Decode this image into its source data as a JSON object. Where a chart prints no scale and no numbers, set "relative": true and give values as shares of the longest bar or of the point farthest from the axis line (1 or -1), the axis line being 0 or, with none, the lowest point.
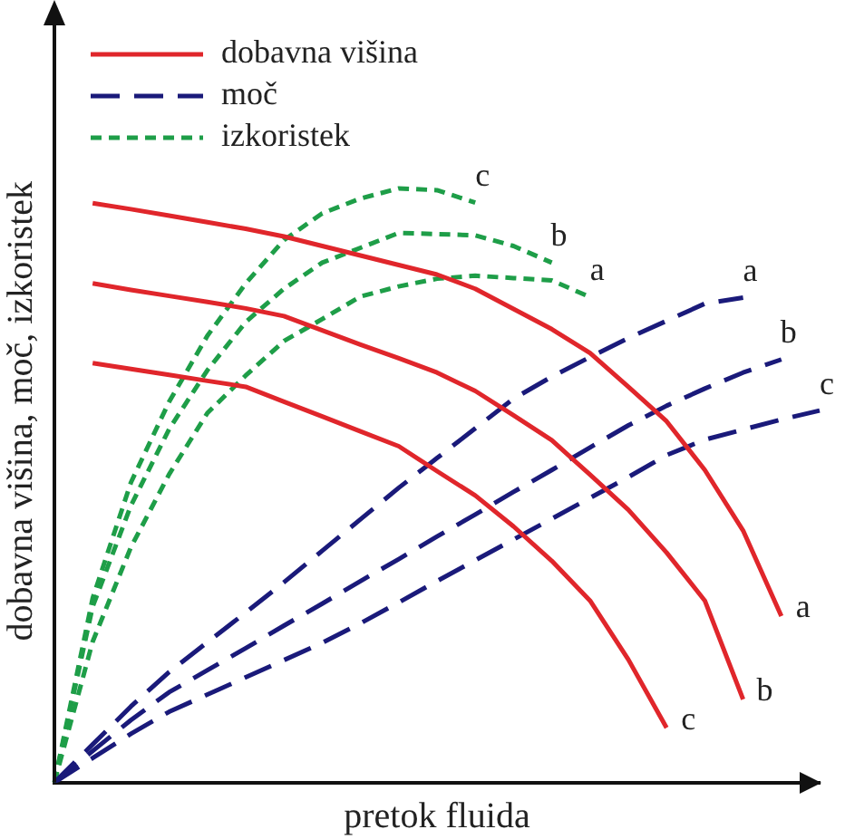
{
  "chart_data": {
    "type": "line",
    "relative": true,
    "xlabel": "pretok fluida",
    "ylabel": "dobavna višina, moč, izkoristek",
    "legend": "top left",
    "grid": false,
    "marker": "none",
    "categories": [
      null,
      null,
      null,
      null,
      null,
      null,
      null,
      null,
      null,
      null,
      null,
      null,
      null,
      null,
      null,
      null,
      null,
      null,
      null,
      null,
      null
    ],
    "series": [
      {
        "name": "dobavna višina",
        "color": "#e0262b",
        "line_style": "solid",
        "values": [
          null,
          0.975,
          0.965,
          0.954,
          0.943,
          0.932,
          0.919,
          0.903,
          0.887,
          0.871,
          0.855,
          0.831,
          0.797,
          0.763,
          0.723,
          0.666,
          0.608,
          0.526,
          0.424,
          0.28,
          null
        ]
      },
      {
        "color": "#e0262b",
        "line_style": "solid",
        "values": [
          null,
          0.84,
          0.829,
          0.819,
          0.809,
          0.798,
          0.785,
          0.761,
          0.737,
          0.714,
          0.69,
          0.659,
          0.618,
          0.576,
          0.518,
          0.459,
          0.387,
          0.306,
          0.14,
          null,
          null
        ]
      },
      {
        "color": "#e0262b",
        "line_style": "solid",
        "values": [
          null,
          0.706,
          0.696,
          0.686,
          0.676,
          0.666,
          0.641,
          0.616,
          0.591,
          0.566,
          0.524,
          0.483,
          0.431,
          0.373,
          0.306,
          0.207,
          0.092,
          null,
          null,
          null,
          null
        ]
      },
      {
        "name": "moč",
        "color": "#1a1a7a",
        "line_style": "dashed",
        "values": [
          0,
          0.064,
          0.128,
          0.186,
          0.236,
          0.286,
          0.337,
          0.39,
          0.443,
          0.496,
          0.546,
          0.596,
          0.646,
          0.683,
          0.716,
          0.748,
          0.777,
          0.806,
          0.816,
          null,
          null
        ]
      },
      {
        "color": "#1a1a7a",
        "line_style": "dashed",
        "values": [
          0,
          0.053,
          0.105,
          0.152,
          0.189,
          0.226,
          0.264,
          0.301,
          0.339,
          0.376,
          0.414,
          0.451,
          0.489,
          0.526,
          0.564,
          0.601,
          0.634,
          0.663,
          0.69,
          0.712,
          null
        ]
      },
      {
        "color": "#1a1a7a",
        "line_style": "dashed",
        "values": [
          0,
          0.041,
          0.082,
          0.119,
          0.148,
          0.177,
          0.206,
          0.235,
          0.268,
          0.303,
          0.339,
          0.374,
          0.409,
          0.444,
          0.479,
          0.514,
          0.551,
          0.577,
          0.594,
          0.611,
          0.626
        ]
      },
      {
        "name": "izkoristek",
        "color": "#1e9e48",
        "line_style": "dotted",
        "values": [
          0,
          0.237,
          0.396,
          0.519,
          0.622,
          0.685,
          0.743,
          0.78,
          0.818,
          0.835,
          0.848,
          0.853,
          0.849,
          0.845,
          0.817,
          null,
          null,
          null,
          null,
          null,
          null
        ]
      },
      {
        "color": "#1e9e48",
        "line_style": "dotted",
        "values": [
          0,
          0.296,
          0.466,
          0.595,
          0.694,
          0.775,
          0.831,
          0.875,
          0.9,
          0.925,
          0.923,
          0.921,
          0.903,
          0.875,
          null,
          null,
          null,
          null,
          null,
          null,
          null
        ]
      },
      {
        "color": "#1e9e48",
        "line_style": "dotted",
        "values": [
          0,
          0.31,
          0.505,
          0.641,
          0.752,
          0.84,
          0.913,
          0.958,
          0.983,
          1.0,
          0.997,
          0.976,
          null,
          null,
          null,
          null,
          null,
          null,
          null,
          null,
          null
        ]
      }
    ],
    "annotations": [
      "a",
      "b",
      "c",
      "a",
      "b",
      "c",
      "a",
      "b",
      "c"
    ]
  }
}
